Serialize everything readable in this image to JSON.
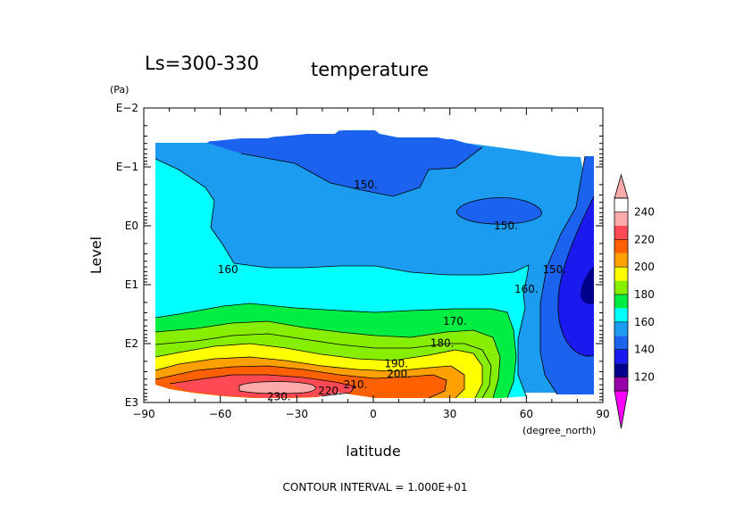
{
  "chart_data": {
    "type": "contour",
    "title_left": "Ls=300-330",
    "title_right": "temperature",
    "xlabel": "latitude",
    "x_units": "(degree_north)",
    "ylabel": "Level",
    "y_units": "(Pa)",
    "footer": "CONTOUR INTERVAL = 1.000E+01",
    "xlim": [
      -90,
      90
    ],
    "x_ticks": [
      -90,
      -60,
      -30,
      0,
      30,
      60,
      90
    ],
    "x_tick_labels": [
      "−90",
      "−60",
      "−30",
      "0",
      "30",
      "60",
      "90"
    ],
    "y_scale": "log",
    "y_reversed": true,
    "ylim": [
      1000,
      0.01
    ],
    "y_ticks": [
      0.01,
      0.1,
      1,
      10,
      100,
      1000
    ],
    "y_tick_labels": [
      "E−2",
      "E−1",
      "E0",
      "E1",
      "E2",
      "E3"
    ],
    "colorbar": {
      "levels": [
        110,
        120,
        130,
        140,
        150,
        160,
        170,
        180,
        190,
        200,
        210,
        220,
        230,
        240,
        250
      ],
      "tick_values": [
        120,
        140,
        160,
        180,
        200,
        220,
        240
      ],
      "tick_labels": [
        "120",
        "140",
        "160",
        "180",
        "200",
        "220",
        "240"
      ],
      "colors": [
        "#9900aa",
        "#00008b",
        "#1a1aee",
        "#1b62ee",
        "#1c9cf0",
        "#00ffff",
        "#00ee44",
        "#88ee00",
        "#ffff00",
        "#ffa000",
        "#ff6000",
        "#ff4a55",
        "#ffaaaa"
      ],
      "under_color": "#ff00ff",
      "over_color": "#ffaaaa"
    },
    "contour_labels": [
      {
        "text": "150.",
        "lat": -3,
        "p": 0.2
      },
      {
        "text": "150.",
        "lat": 52,
        "p": 1.0
      },
      {
        "text": "150.",
        "lat": 71,
        "p": 5.5
      },
      {
        "text": "160",
        "lat": -57,
        "p": 5.5
      },
      {
        "text": "160.",
        "lat": 60,
        "p": 12
      },
      {
        "text": "170.",
        "lat": 32,
        "p": 42
      },
      {
        "text": "180.",
        "lat": 27,
        "p": 98
      },
      {
        "text": "190.",
        "lat": 9,
        "p": 220
      },
      {
        "text": "200.",
        "lat": 10,
        "p": 330
      },
      {
        "text": "210.",
        "lat": -7,
        "p": 500
      },
      {
        "text": "220.",
        "lat": -17,
        "p": 640
      },
      {
        "text": "230.",
        "lat": -37,
        "p": 800
      }
    ]
  }
}
